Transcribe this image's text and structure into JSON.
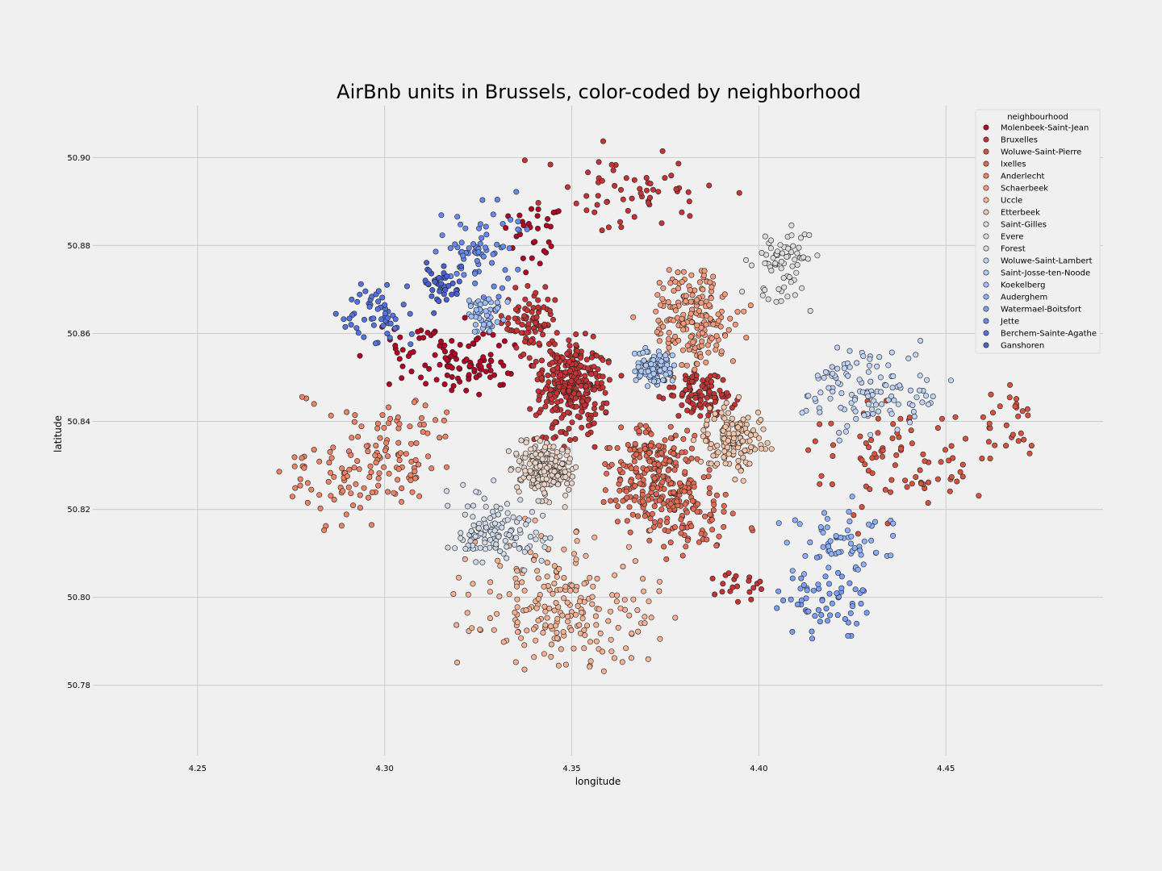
{
  "chart_data": {
    "type": "scatter",
    "title": "AirBnb units in Brussels, color-coded by neighborhood",
    "xlabel": "longitude",
    "ylabel": "latitude",
    "xlim": [
      4.222,
      4.492
    ],
    "ylim": [
      50.764,
      50.9118
    ],
    "xticks": [
      4.25,
      4.3,
      4.35,
      4.4,
      4.45
    ],
    "xtick_labels": [
      "4.25",
      "4.30",
      "4.35",
      "4.40",
      "4.45"
    ],
    "yticks": [
      50.78,
      50.8,
      50.82,
      50.84,
      50.86,
      50.88,
      50.9
    ],
    "ytick_labels": [
      "50.78",
      "50.80",
      "50.82",
      "50.84",
      "50.86",
      "50.88",
      "50.90"
    ],
    "grid": true,
    "legend_title": "neighbourhood",
    "legend_position": "top-right",
    "series": [
      {
        "name": "Molenbeek-Saint-Jean",
        "color": "#b40426",
        "regions": [
          [
            4.322,
            50.854,
            0.012,
            0.007,
            90
          ],
          [
            4.34,
            50.883,
            0.007,
            0.008,
            30
          ],
          [
            4.305,
            50.856,
            0.01,
            0.005,
            25
          ]
        ]
      },
      {
        "name": "Bruxelles",
        "color": "#c53334",
        "regions": [
          [
            4.35,
            50.848,
            0.008,
            0.009,
            320
          ],
          [
            4.367,
            50.892,
            0.018,
            0.007,
            60
          ],
          [
            4.339,
            50.863,
            0.006,
            0.006,
            80
          ],
          [
            4.385,
            50.846,
            0.008,
            0.004,
            90
          ],
          [
            4.394,
            50.803,
            0.005,
            0.004,
            20
          ]
        ]
      },
      {
        "name": "Woluwe-Saint-Pierre",
        "color": "#d6523e",
        "regions": [
          [
            4.44,
            50.832,
            0.022,
            0.01,
            90
          ],
          [
            4.468,
            50.84,
            0.006,
            0.006,
            25
          ]
        ]
      },
      {
        "name": "Ixelles",
        "color": "#e26952",
        "regions": [
          [
            4.372,
            50.828,
            0.01,
            0.01,
            260
          ],
          [
            4.382,
            50.818,
            0.01,
            0.008,
            70
          ]
        ]
      },
      {
        "name": "Anderlecht",
        "color": "#ed8366",
        "regions": [
          [
            4.3,
            50.834,
            0.014,
            0.01,
            110
          ],
          [
            4.285,
            50.825,
            0.012,
            0.008,
            40
          ]
        ]
      },
      {
        "name": "Schaerbeek",
        "color": "#f49a7b",
        "regions": [
          [
            4.383,
            50.862,
            0.01,
            0.009,
            200
          ]
        ]
      },
      {
        "name": "Uccle",
        "color": "#f6b092",
        "regions": [
          [
            4.348,
            50.798,
            0.02,
            0.012,
            220
          ]
        ]
      },
      {
        "name": "Etterbeek",
        "color": "#f2c4a8",
        "regions": [
          [
            4.393,
            50.836,
            0.007,
            0.006,
            140
          ]
        ]
      },
      {
        "name": "Saint-Gilles",
        "color": "#ead4c8",
        "regions": [
          [
            4.343,
            50.829,
            0.006,
            0.005,
            200
          ]
        ]
      },
      {
        "name": "Evere",
        "color": "#dddcdc",
        "regions": [
          [
            4.407,
            50.875,
            0.008,
            0.007,
            70
          ]
        ]
      },
      {
        "name": "Forest",
        "color": "#cfdaea",
        "regions": [
          [
            4.329,
            50.815,
            0.01,
            0.007,
            120
          ]
        ]
      },
      {
        "name": "Woluwe-Saint-Lambert",
        "color": "#bfd3f6",
        "regions": [
          [
            4.428,
            50.847,
            0.015,
            0.007,
            120
          ]
        ]
      },
      {
        "name": "Saint-Josse-ten-Noode",
        "color": "#aec9fc",
        "regions": [
          [
            4.372,
            50.852,
            0.004,
            0.003,
            110
          ]
        ]
      },
      {
        "name": "Koekelberg",
        "color": "#9ebeff",
        "regions": [
          [
            4.327,
            50.864,
            0.004,
            0.003,
            50
          ]
        ]
      },
      {
        "name": "Auderghem",
        "color": "#8db0fe",
        "regions": [
          [
            4.422,
            50.813,
            0.012,
            0.006,
            60
          ]
        ]
      },
      {
        "name": "Watermael-Boitsfort",
        "color": "#7b9ff9",
        "regions": [
          [
            4.418,
            50.799,
            0.01,
            0.007,
            60
          ]
        ]
      },
      {
        "name": "Jette",
        "color": "#6788ee",
        "regions": [
          [
            4.325,
            50.88,
            0.01,
            0.008,
            70
          ]
        ]
      },
      {
        "name": "Berchem-Sainte-Agathe",
        "color": "#5572df",
        "regions": [
          [
            4.298,
            50.864,
            0.008,
            0.005,
            55
          ]
        ]
      },
      {
        "name": "Ganshoren",
        "color": "#4961d2",
        "regions": [
          [
            4.315,
            50.871,
            0.005,
            0.004,
            40
          ]
        ]
      }
    ]
  }
}
